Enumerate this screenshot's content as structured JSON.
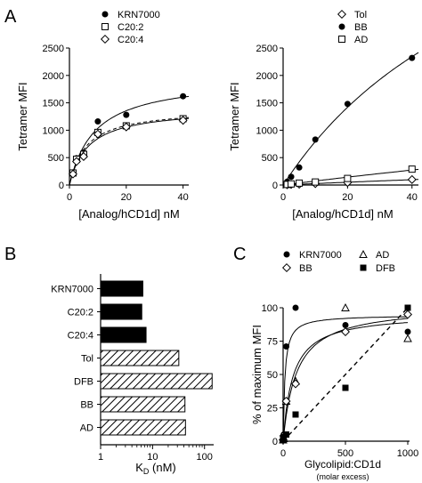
{
  "figure": {
    "panel_labels": [
      "A",
      "B",
      "C"
    ]
  },
  "chart_data": [
    {
      "panel": "A",
      "type": "scatter",
      "xlabel": "[Analog/hCD1d] nM",
      "ylabel": "Tetramer MFI",
      "xlim": [
        0,
        42
      ],
      "ylim": [
        0,
        2500
      ],
      "xticks": [
        0,
        20,
        40
      ],
      "yticks": [
        0,
        500,
        1000,
        1500,
        2000,
        2500
      ],
      "legend_position": "top-left",
      "series": [
        {
          "name": "KRN7000",
          "marker": "circle-filled",
          "line": "solid",
          "x": [
            1.25,
            2.5,
            5,
            10,
            20,
            40
          ],
          "y": [
            230,
            490,
            590,
            1160,
            1280,
            1620
          ]
        },
        {
          "name": "C20:2",
          "marker": "square-open",
          "line": "dashed",
          "x": [
            1.25,
            2.5,
            5,
            10,
            20,
            40
          ],
          "y": [
            220,
            470,
            560,
            960,
            1080,
            1210
          ]
        },
        {
          "name": "C20:4",
          "marker": "diamond-open",
          "line": "solid",
          "x": [
            1.25,
            2.5,
            5,
            10,
            20,
            40
          ],
          "y": [
            200,
            430,
            520,
            930,
            1060,
            1180
          ]
        }
      ]
    },
    {
      "panel": "A-right",
      "type": "scatter",
      "xlabel": "[Analog/hCD1d] nM",
      "ylabel": "Tetramer MFI",
      "xlim": [
        0,
        42
      ],
      "ylim": [
        0,
        2500
      ],
      "xticks": [
        0,
        20,
        40
      ],
      "yticks": [
        0,
        500,
        1000,
        1500,
        2000,
        2500
      ],
      "legend_position": "top-left",
      "series": [
        {
          "name": "Tol",
          "marker": "diamond-open",
          "line": "solid",
          "x": [
            1.25,
            2.5,
            5,
            10,
            20,
            40
          ],
          "y": [
            5,
            10,
            15,
            25,
            45,
            100
          ]
        },
        {
          "name": "BB",
          "marker": "circle-filled",
          "line": "solid",
          "x": [
            1.25,
            2.5,
            5,
            10,
            20,
            40
          ],
          "y": [
            60,
            150,
            320,
            830,
            1480,
            2320
          ]
        },
        {
          "name": "AD",
          "marker": "square-open",
          "line": "solid",
          "x": [
            1.25,
            2.5,
            5,
            10,
            20,
            40
          ],
          "y": [
            10,
            20,
            35,
            55,
            120,
            290
          ]
        }
      ]
    },
    {
      "panel": "B",
      "type": "bar",
      "orientation": "horizontal",
      "xlabel": "K",
      "xlabel_sub": "D",
      "xlabel_suffix": " (nM)",
      "xscale": "log",
      "xlim": [
        1,
        150
      ],
      "xticks": [
        "1",
        "10",
        "100"
      ],
      "categories": [
        "KRN7000",
        "C20:2",
        "C20:4",
        "Tol",
        "DFB",
        "BB",
        "AD"
      ],
      "values": [
        6.5,
        6.2,
        7.5,
        32,
        140,
        42,
        43
      ],
      "fills": [
        "solid",
        "solid",
        "solid",
        "hatched",
        "hatched",
        "hatched",
        "hatched"
      ]
    },
    {
      "panel": "C",
      "type": "scatter",
      "xlabel": "Glycolipid:CD1d",
      "xlabel2": "(molar excess)",
      "ylabel": "% of maximum MFI",
      "xlim": [
        0,
        1000
      ],
      "ylim": [
        0,
        100
      ],
      "xticks": [
        0,
        500,
        1000
      ],
      "yticks": [
        0,
        25,
        50,
        75,
        100
      ],
      "legend_position": "top",
      "series": [
        {
          "name": "KRN7000",
          "marker": "circle-filled",
          "line": "solid",
          "x": [
            0,
            5,
            25,
            100,
            500,
            1000
          ],
          "y": [
            2,
            5,
            71,
            100,
            87,
            82
          ]
        },
        {
          "name": "AD",
          "marker": "triangle-open",
          "line": "solid",
          "x": [
            0,
            5,
            25,
            100,
            500,
            1000
          ],
          "y": [
            1,
            2,
            30,
            45,
            100,
            77
          ]
        },
        {
          "name": "BB",
          "marker": "diamond-open",
          "line": "solid",
          "x": [
            0,
            5,
            25,
            100,
            500,
            1000
          ],
          "y": [
            1,
            4,
            30,
            43,
            82,
            95
          ]
        },
        {
          "name": "DFB",
          "marker": "square-filled",
          "line": "dashed",
          "x": [
            0,
            5,
            25,
            100,
            500,
            1000
          ],
          "y": [
            1,
            3,
            5,
            20,
            40,
            100
          ]
        }
      ]
    }
  ]
}
